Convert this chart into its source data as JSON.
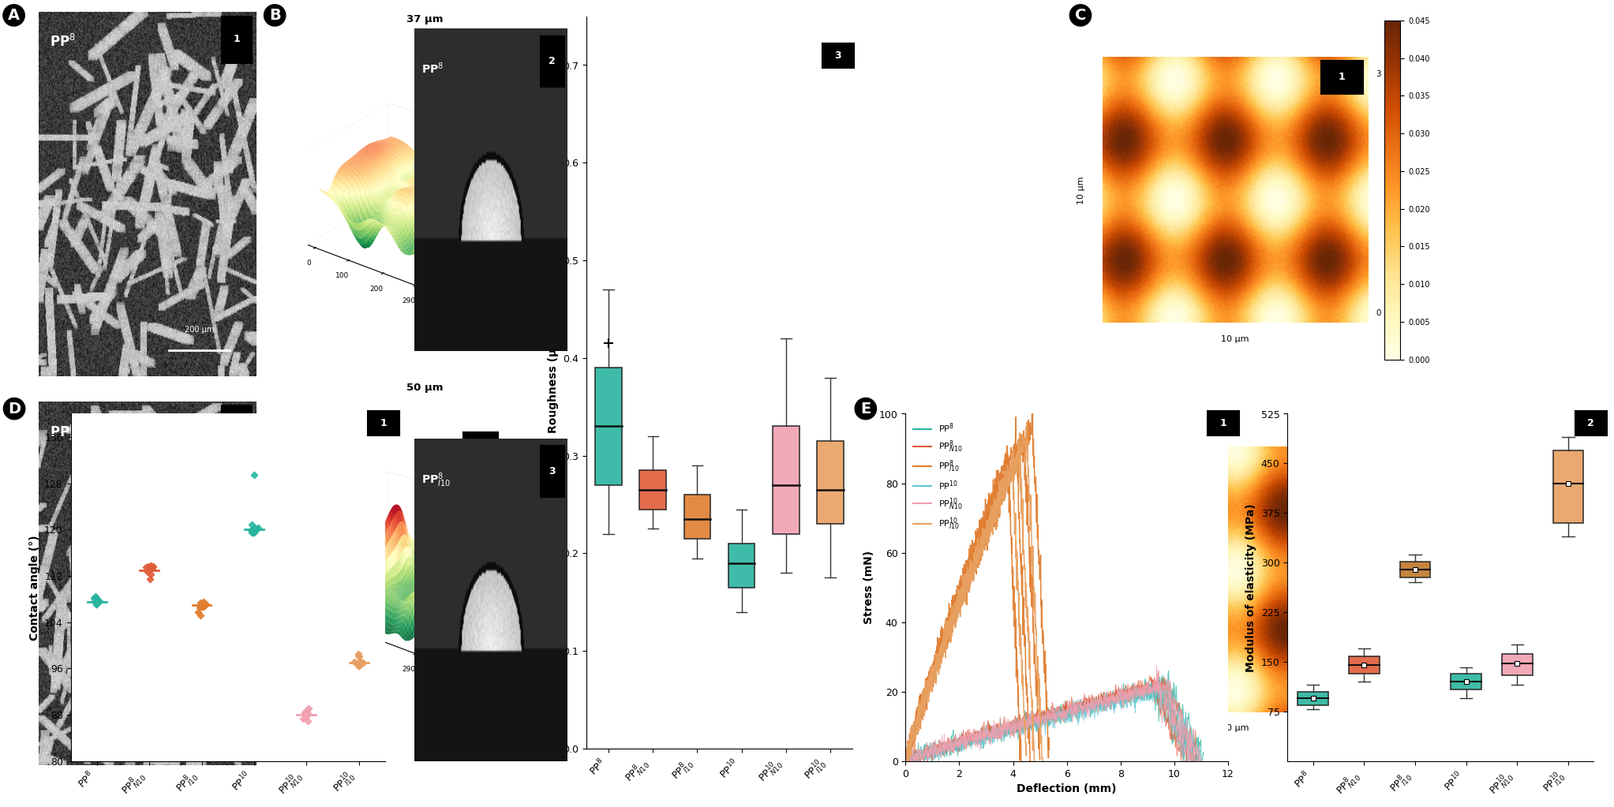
{
  "roughness_box": {
    "categories": [
      "PP$^8$",
      "PP$^8_{N10}$",
      "PP$^8_{I10}$",
      "PP$^{10}$",
      "PP$^{10}_{N10}$",
      "PP$^{10}_{I10}$"
    ],
    "colors": [
      "#2ab5a0",
      "#e05c3a",
      "#e07d30",
      "#2ab5a0",
      "#f0a0b0",
      "#e8a060"
    ],
    "medians": [
      0.33,
      0.265,
      0.235,
      0.19,
      0.27,
      0.265
    ],
    "q1": [
      0.27,
      0.245,
      0.215,
      0.165,
      0.22,
      0.23
    ],
    "q3": [
      0.39,
      0.285,
      0.26,
      0.21,
      0.33,
      0.315
    ],
    "whisker_low": [
      0.22,
      0.225,
      0.195,
      0.14,
      0.18,
      0.175
    ],
    "whisker_high": [
      0.47,
      0.32,
      0.29,
      0.245,
      0.42,
      0.38
    ],
    "outlier_x": 0,
    "outlier_y": 0.415,
    "ylabel": "Roughness (μm)",
    "ylim": [
      0.0,
      0.75
    ],
    "yticks": [
      0.0,
      0.1,
      0.2,
      0.3,
      0.4,
      0.5,
      0.6,
      0.7
    ]
  },
  "contact_angle": {
    "categories": [
      "PP$^8$",
      "PP$^8_{N10}$",
      "PP$^8_{I10}$",
      "PP$^{10}$",
      "PP$^{10}_{N10}$",
      "PP$^{10}_{I10}$"
    ],
    "colors": [
      "#2ab5a0",
      "#e05c3a",
      "#e07d30",
      "#2ab5a0",
      "#f0a0b0",
      "#e8a060"
    ],
    "means": [
      107.5,
      113.0,
      107.0,
      120.0,
      88.0,
      97.0
    ],
    "spreads": [
      0.5,
      0.7,
      0.7,
      0.5,
      0.6,
      0.7
    ],
    "outlier_x": 3,
    "outlier_y": 129.5,
    "ylabel": "Contact angle (°)",
    "ylim": [
      80,
      140
    ],
    "yticks": [
      80,
      88,
      96,
      104,
      112,
      120,
      128,
      136
    ]
  },
  "stress_deflection": {
    "colors": [
      "#2ab5a0",
      "#e05c3a",
      "#e07d30",
      "#5bc8d0",
      "#f0a0b0",
      "#e8a060"
    ],
    "labels": [
      "PP$^8$",
      "PP$^8_{N10}$",
      "PP$^8_{I10}$",
      "PP$^{10}$",
      "PP$^{10}_{N10}$",
      "PP$^{10}_{I10}$"
    ],
    "xlabel": "Deflection (mm)",
    "ylabel": "Stress (mN)",
    "ylim": [
      0,
      100
    ],
    "xlim": [
      0,
      12
    ],
    "yticks": [
      0,
      20,
      40,
      60,
      80,
      100
    ],
    "xticks": [
      0,
      2,
      4,
      6,
      8,
      10,
      12
    ]
  },
  "modulus_elasticity": {
    "categories": [
      "PP$^8$",
      "PP$^8_{N10}$",
      "PP$^8_{I10}$",
      "PP$^{10}$",
      "PP$^{10}_{N10}$",
      "PP$^{10}_{I10}$"
    ],
    "colors": [
      "#2ab5a0",
      "#e05c3a",
      "#c07828",
      "#2ab5a0",
      "#f0a0b0",
      "#e8a060"
    ],
    "medians": [
      95,
      145,
      290,
      120,
      148,
      420
    ],
    "q1": [
      85,
      132,
      278,
      108,
      130,
      360
    ],
    "q3": [
      105,
      158,
      302,
      132,
      162,
      470
    ],
    "whisker_low": [
      78,
      120,
      270,
      95,
      115,
      340
    ],
    "whisker_high": [
      115,
      170,
      312,
      142,
      176,
      490
    ],
    "ylabel": "Modulus of elasticity (MPa)",
    "ylim": [
      0,
      525
    ],
    "yticks": [
      75,
      150,
      225,
      300,
      375,
      450,
      525
    ]
  }
}
